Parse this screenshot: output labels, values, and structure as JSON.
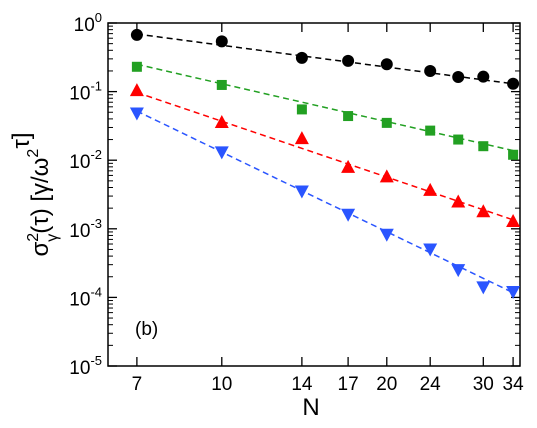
{
  "chart_data": {
    "type": "scatter",
    "panel_label": "(b)",
    "xlabel": "N",
    "ylabel": {
      "parts": [
        {
          "text": "σ",
          "role": "base"
        },
        {
          "text": "2",
          "role": "sup"
        },
        {
          "text": "γ",
          "role": "sub"
        },
        {
          "text": "(τ) [γ/ω",
          "role": "base"
        },
        {
          "text": "2",
          "role": "sup"
        },
        {
          "text": "τ]",
          "role": "base"
        }
      ]
    },
    "x_scale": "log",
    "y_scale": "log",
    "xlim": [
      6.2,
      35
    ],
    "ylim": [
      1e-05,
      1
    ],
    "x_ticks": [
      7,
      10,
      14,
      17,
      20,
      24,
      30,
      34
    ],
    "x_tick_labels": [
      "7",
      "10",
      "14",
      "17",
      "20",
      "24",
      "30",
      "34"
    ],
    "y_ticks": [
      1e-05,
      0.0001,
      0.001,
      0.01,
      0.1,
      1
    ],
    "y_tick_labels": [
      {
        "base": "10",
        "exp": "-5"
      },
      {
        "base": "10",
        "exp": "-4"
      },
      {
        "base": "10",
        "exp": "-3"
      },
      {
        "base": "10",
        "exp": "-2"
      },
      {
        "base": "10",
        "exp": "-1"
      },
      {
        "base": "10",
        "exp": "0"
      }
    ],
    "grid": false,
    "legend": "none",
    "series": [
      {
        "marker": "circle",
        "color": "#000000",
        "x": [
          7,
          10,
          14,
          17,
          20,
          24,
          27,
          30,
          34
        ],
        "y": [
          0.67,
          0.54,
          0.31,
          0.28,
          0.25,
          0.2,
          0.163,
          0.165,
          0.13
        ],
        "fit": {
          "x": [
            7,
            34
          ],
          "y": [
            0.69,
            0.13
          ]
        }
      },
      {
        "marker": "square",
        "color": "#22a022",
        "x": [
          7,
          10,
          14,
          17,
          20,
          24,
          27,
          30,
          34
        ],
        "y": [
          0.23,
          0.125,
          0.055,
          0.044,
          0.035,
          0.027,
          0.02,
          0.016,
          0.012
        ],
        "fit": {
          "x": [
            7,
            34
          ],
          "y": [
            0.25,
            0.0138
          ]
        }
      },
      {
        "marker": "triangle-up",
        "color": "#ff0000",
        "x": [
          7,
          10,
          14,
          17,
          20,
          24,
          27,
          30,
          34
        ],
        "y": [
          0.105,
          0.036,
          0.021,
          0.008,
          0.0058,
          0.0037,
          0.0025,
          0.0018,
          0.0013
        ],
        "fit": {
          "x": [
            7,
            34
          ],
          "y": [
            0.097,
            0.00135
          ]
        }
      },
      {
        "marker": "triangle-down",
        "color": "#2a55ff",
        "x": [
          7,
          10,
          14,
          17,
          20,
          24,
          27,
          30,
          34
        ],
        "y": [
          0.048,
          0.013,
          0.0035,
          0.0016,
          0.00082,
          0.0005,
          0.00025,
          0.00014,
          0.00012
        ],
        "fit": {
          "x": [
            7,
            34
          ],
          "y": [
            0.052,
            0.000117
          ]
        }
      }
    ]
  }
}
